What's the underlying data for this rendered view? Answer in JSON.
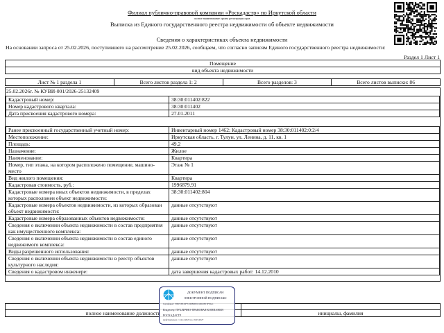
{
  "header": {
    "organization": "Филиал публично-правовой компании «Роскадастр» по Иркутской области",
    "organization_caption": "полное наименование органа регистрации прав",
    "title": "Выписка из Единого государственного реестра недвижимости об объекте недвижимости",
    "subtitle": "Сведения о характеристиках объекта недвижимости",
    "intro": "На  основании запроса от 25.02.2026, поступившего на рассмотрение 25.02.2026, сообщаем, что согласно записям Единого государственного реестра недвижимости:",
    "section_label": "Раздел 1 Лист 1"
  },
  "object": {
    "type": "Помещение",
    "type_caption": "вид объекта недвижимости"
  },
  "sheets": [
    "Лист № 1 раздела 1",
    "Всего листов раздела 1: 2",
    "Всего разделов: 3",
    "Всего листов выписки: 86"
  ],
  "request_line": "25.02.2026г. № КУВИ-001/2026-25132409",
  "main_rows": [
    {
      "label": "Кадастровый номер:",
      "value": "38:30:011402:822"
    },
    {
      "label": "Номер кадастрового квартала:",
      "value": "38:30:011402"
    },
    {
      "label": "Дата присвоения кадастрового номера:",
      "value": "27.01.2011"
    }
  ],
  "detail_rows": [
    {
      "label": "Ранее присвоенный государственный учетный номер:",
      "value": "Инвентарный номер 1462; Кадастровый номер 38:30:011402:0:2/4"
    },
    {
      "label": "Местоположение:",
      "value": "Иркутская область, г. Тулун, ул. Ленина, д. 11, кв. 1"
    },
    {
      "label": "Площадь:",
      "value": "49.2"
    },
    {
      "label": "Назначение:",
      "value": "Жилое"
    },
    {
      "label": "Наименование:",
      "value": "Квартира"
    },
    {
      "label": "Номер, тип этажа, на котором расположено помещение, машино-место",
      "value": "Этаж № 1"
    },
    {
      "label": "Вид жилого помещения:",
      "value": "Квартира"
    },
    {
      "label": "Кадастровая стоимость, руб.:",
      "value": "1996879.91"
    },
    {
      "label": "Кадастровые номера иных объектов недвижимости, в пределах которых расположен объект недвижимости:",
      "value": "38:30:011402:804"
    },
    {
      "label": "Кадастровые номера объектов недвижимости, из которых образован объект недвижимости:",
      "value": "данные отсутствуют"
    },
    {
      "label": "Кадастровые номера образованных объектов недвижимости:",
      "value": "данные отсутствуют"
    },
    {
      "label": "Сведения о включении объекта недвижимости в состав предприятия как имущественного комплекса:",
      "value": "данные отсутствуют"
    },
    {
      "label": "Сведения о включении объекта недвижимости в состав единого недвижимого комплекса:",
      "value": "данные отсутствуют"
    },
    {
      "label": "Виды разрешенного использования:",
      "value": "данные отсутствуют"
    },
    {
      "label": "Сведения о включении объекта недвижимости в реестр объектов культурного наследия:",
      "value": "данные отсутствуют"
    },
    {
      "label": "Сведения о кадастровом инженере:",
      "value": "дата завершения кадастровых работ: 14.12.2010"
    }
  ],
  "signature": {
    "position_caption": "полное наименование должности",
    "name_caption": "инициалы, фамилия"
  },
  "stamp": {
    "line1": "ДОКУМЕНТ ПОДПИСАН",
    "line2": "ЭЛЕКТРОННОЙ ПОДПИСЬЮ",
    "certificate": "Сертификат: 5399716E16F7C09080D5521961080 9F56A1",
    "owner": "Владелец: ПУБЛИЧНО-ПРАВОВАЯ КОМПАНИЯ",
    "owner2": "РОСКАДАСТР",
    "validity": "Действителен: с 24.12.2025 по 19.03.2027",
    "color": "#1c2470",
    "logo_color": "#1aa3e0"
  }
}
